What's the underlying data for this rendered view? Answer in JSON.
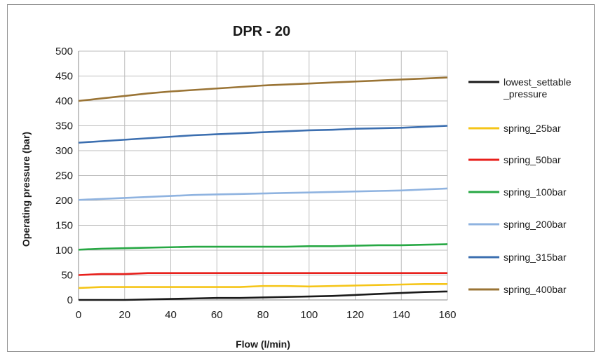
{
  "chart_data": {
    "type": "line",
    "title": "DPR - 20",
    "xlabel": "Flow (l/min)",
    "ylabel": "Operating pressure (bar)",
    "xlim": [
      0,
      160
    ],
    "ylim": [
      0,
      500
    ],
    "xticks": [
      0,
      20,
      40,
      60,
      80,
      100,
      120,
      140,
      160
    ],
    "yticks": [
      0,
      50,
      100,
      150,
      200,
      250,
      300,
      350,
      400,
      450,
      500
    ],
    "grid": true,
    "legend_position": "right",
    "x": [
      0,
      10,
      20,
      30,
      40,
      50,
      60,
      70,
      80,
      90,
      100,
      110,
      120,
      130,
      140,
      150,
      160
    ],
    "series": [
      {
        "name": "lowest_settable_pressure",
        "color": "#1a1a1a",
        "values": [
          0,
          0,
          0,
          1,
          2,
          3,
          4,
          4,
          5,
          6,
          7,
          8,
          10,
          12,
          14,
          16,
          17
        ]
      },
      {
        "name": "spring_25bar",
        "color": "#f5c518",
        "values": [
          24,
          26,
          26,
          26,
          26,
          26,
          26,
          26,
          28,
          28,
          27,
          28,
          29,
          30,
          31,
          32,
          32
        ]
      },
      {
        "name": "spring_50bar",
        "color": "#e8201c",
        "values": [
          50,
          52,
          52,
          54,
          54,
          54,
          54,
          54,
          54,
          54,
          54,
          54,
          54,
          54,
          54,
          54,
          54
        ]
      },
      {
        "name": "spring_100bar",
        "color": "#27a844",
        "values": [
          101,
          103,
          104,
          105,
          106,
          107,
          107,
          107,
          107,
          107,
          108,
          108,
          109,
          110,
          110,
          111,
          112
        ]
      },
      {
        "name": "spring_200bar",
        "color": "#8fb3e0",
        "values": [
          201,
          203,
          205,
          207,
          209,
          211,
          212,
          213,
          214,
          215,
          216,
          217,
          218,
          219,
          220,
          222,
          224
        ]
      },
      {
        "name": "spring_315bar",
        "color": "#3c6fb0",
        "values": [
          316,
          319,
          322,
          325,
          328,
          331,
          333,
          335,
          337,
          339,
          341,
          342,
          344,
          345,
          346,
          348,
          350
        ]
      },
      {
        "name": "spring_400bar",
        "color": "#9a7435",
        "values": [
          400,
          405,
          410,
          415,
          419,
          422,
          425,
          428,
          431,
          433,
          435,
          437,
          439,
          441,
          443,
          445,
          447
        ]
      }
    ]
  }
}
